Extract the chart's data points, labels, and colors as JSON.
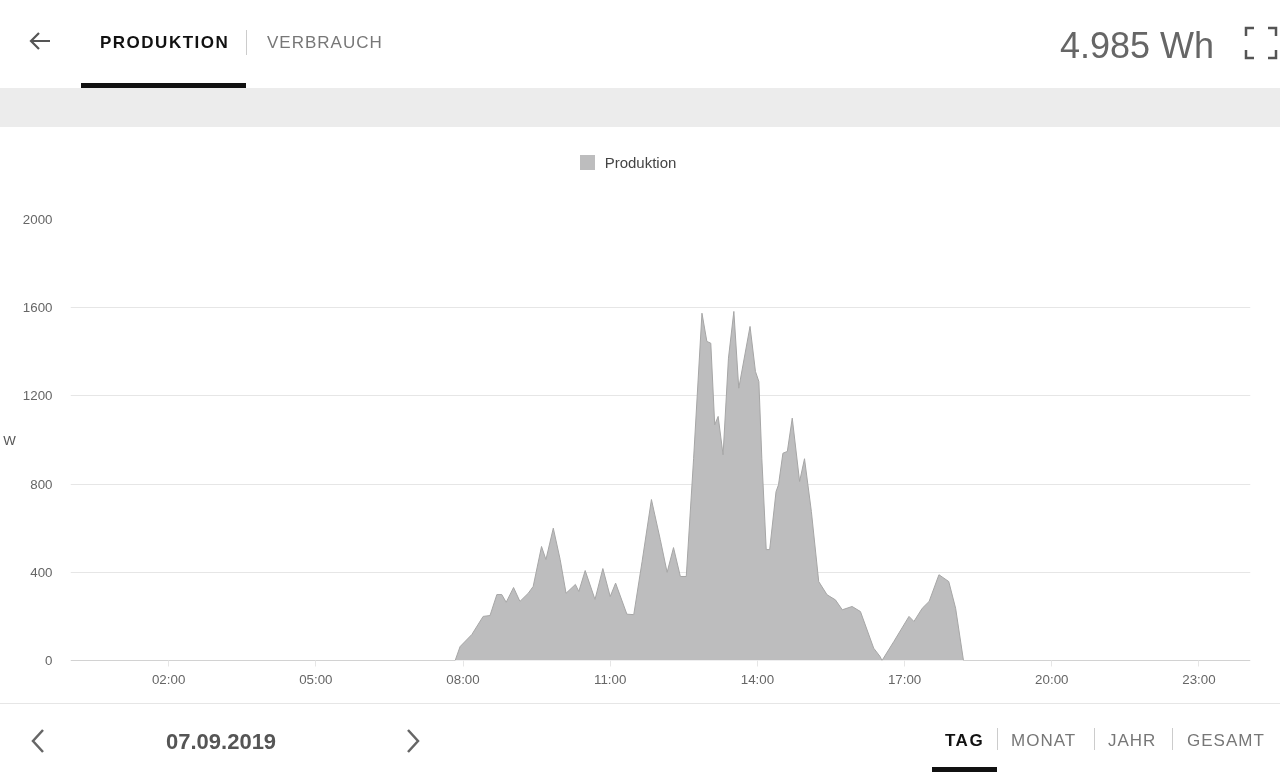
{
  "chart_data": {
    "type": "area",
    "ylabel": "W",
    "annotations": [
      "PRODUKTION",
      "VERBRAUCH",
      "4.985 Wh",
      "07.09.2019",
      "TAG",
      "MONAT",
      "JAHR",
      "GESAMT"
    ],
    "x": [
      0,
      7.84,
      7.94,
      8.18,
      8.41,
      8.55,
      8.69,
      8.79,
      8.88,
      9.03,
      9.16,
      9.33,
      9.43,
      9.6,
      9.69,
      9.84,
      9.98,
      10.1,
      10.29,
      10.36,
      10.49,
      10.69,
      10.85,
      11.0,
      11.11,
      11.34,
      11.48,
      11.65,
      11.84,
      12.02,
      12.16,
      12.29,
      12.43,
      12.55,
      12.7,
      12.87,
      12.97,
      13.05,
      13.13,
      13.2,
      13.3,
      13.41,
      13.52,
      13.62,
      13.85,
      13.96,
      14.03,
      14.09,
      14.18,
      14.25,
      14.38,
      14.43,
      14.52,
      14.61,
      14.71,
      14.86,
      14.96,
      15.1,
      15.25,
      15.42,
      15.59,
      15.73,
      15.93,
      16.1,
      16.37,
      16.5,
      16.54,
      16.78,
      17.09,
      17.19,
      17.36,
      17.5,
      17.7,
      17.9,
      18.04,
      18.2,
      24.05
    ],
    "series": [
      {
        "name": "Produktion",
        "color": "#bdbdbe",
        "values": [
          0,
          0,
          63,
          118,
          200,
          204,
          299,
          299,
          264,
          331,
          268,
          305,
          336,
          517,
          458,
          600,
          458,
          305,
          345,
          313,
          408,
          277,
          417,
          290,
          351,
          210,
          208,
          449,
          730,
          549,
          400,
          512,
          381,
          381,
          917,
          1575,
          1447,
          1439,
          1069,
          1107,
          933,
          1371,
          1583,
          1235,
          1515,
          1311,
          1265,
          917,
          503,
          503,
          766,
          797,
          940,
          948,
          1099,
          812,
          915,
          676,
          358,
          298,
          275,
          230,
          245,
          222,
          56,
          18,
          0,
          86,
          200,
          177,
          237,
          268,
          389,
          358,
          237,
          0,
          0
        ]
      }
    ],
    "xlim": [
      0,
      24.05
    ],
    "xticks": [
      {
        "value": 2,
        "label": "02:00"
      },
      {
        "value": 5,
        "label": "05:00"
      },
      {
        "value": 8,
        "label": "08:00"
      },
      {
        "value": 11,
        "label": "11:00"
      },
      {
        "value": 14,
        "label": "14:00"
      },
      {
        "value": 17,
        "label": "17:00"
      },
      {
        "value": 20,
        "label": "20:00"
      },
      {
        "value": 23,
        "label": "23:00"
      }
    ],
    "ylim": [
      0,
      2000
    ],
    "yticks": [
      0,
      400,
      800,
      1200,
      1600,
      2000
    ],
    "grid": "y",
    "legend": "top"
  }
}
